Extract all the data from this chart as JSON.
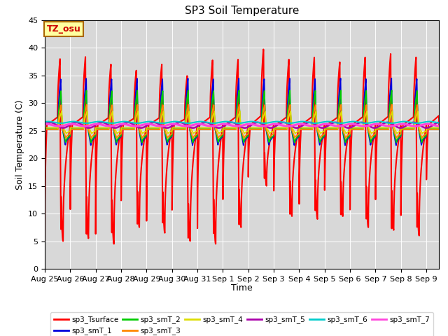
{
  "title": "SP3 Soil Temperature",
  "xlabel": "Time",
  "ylabel": "Soil Temperature (C)",
  "ylim": [
    0,
    45
  ],
  "annotation": "TZ_osu",
  "annotation_box_color": "#ffffa0",
  "annotation_text_color": "#cc0000",
  "annotation_border_color": "#aa6600",
  "background_color": "#d8d8d8",
  "series_colors": {
    "sp3_Tsurface": "#ff0000",
    "sp3_smT_1": "#0000dd",
    "sp3_smT_2": "#00cc00",
    "sp3_smT_3": "#ff8800",
    "sp3_smT_4": "#dddd00",
    "sp3_smT_5": "#aa00aa",
    "sp3_smT_6": "#00cccc",
    "sp3_smT_7": "#ff44dd"
  },
  "xtick_labels": [
    "Aug 25",
    "Aug 26",
    "Aug 27",
    "Aug 28",
    "Aug 29",
    "Aug 30",
    "Aug 31",
    "Sep 1",
    "Sep 2",
    "Sep 3",
    "Sep 4",
    "Sep 5",
    "Sep 6",
    "Sep 7",
    "Sep 8",
    "Sep 9"
  ],
  "legend_entries": [
    {
      "label": "sp3_Tsurface",
      "color": "#ff0000"
    },
    {
      "label": "sp3_smT_1",
      "color": "#0000dd"
    },
    {
      "label": "sp3_smT_2",
      "color": "#00cc00"
    },
    {
      "label": "sp3_smT_3",
      "color": "#ff8800"
    },
    {
      "label": "sp3_smT_4",
      "color": "#dddd00"
    },
    {
      "label": "sp3_smT_5",
      "color": "#aa00aa"
    },
    {
      "label": "sp3_smT_6",
      "color": "#00cccc"
    },
    {
      "label": "sp3_smT_7",
      "color": "#ff44dd"
    }
  ]
}
